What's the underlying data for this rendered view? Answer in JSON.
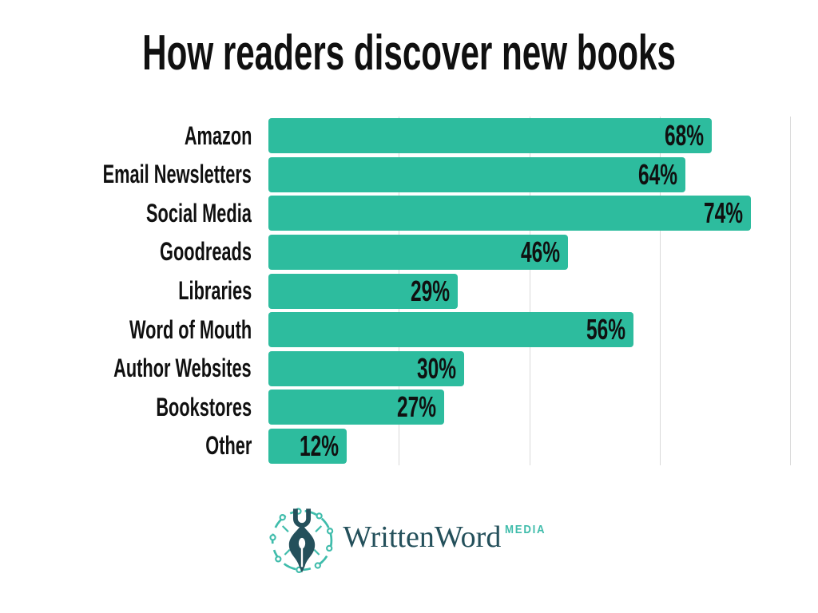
{
  "chart_data": {
    "type": "bar",
    "orientation": "horizontal",
    "title": "How readers discover new books",
    "categories": [
      "Amazon",
      "Email Newsletters",
      "Social Media",
      "Goodreads",
      "Libraries",
      "Word of Mouth",
      "Author Websites",
      "Bookstores",
      "Other"
    ],
    "values": [
      68,
      64,
      74,
      46,
      29,
      56,
      30,
      27,
      12
    ],
    "value_suffix": "%",
    "value_labels": [
      "68%",
      "64%",
      "74%",
      "46%",
      "29%",
      "56%",
      "30%",
      "27%",
      "12%"
    ],
    "xlabel": "",
    "ylabel": "",
    "xlim": [
      0,
      80
    ],
    "gridlines_x": [
      20,
      40,
      60,
      80
    ],
    "grid": "vertical-gridlines-only",
    "legend": "none",
    "value_label_position": "inside-bar-right",
    "bar_color": "#2dbc9e",
    "grid_color": "#d9d9d9",
    "text_color": "#101010",
    "background_color": "#ffffff"
  },
  "footer": {
    "brand_name": "WrittenWord",
    "brand_suffix": "MEDIA",
    "logo_icon": "pen-nib-circuit-icon",
    "brand_color": "#24505b",
    "accent_color": "#3fbcab"
  }
}
